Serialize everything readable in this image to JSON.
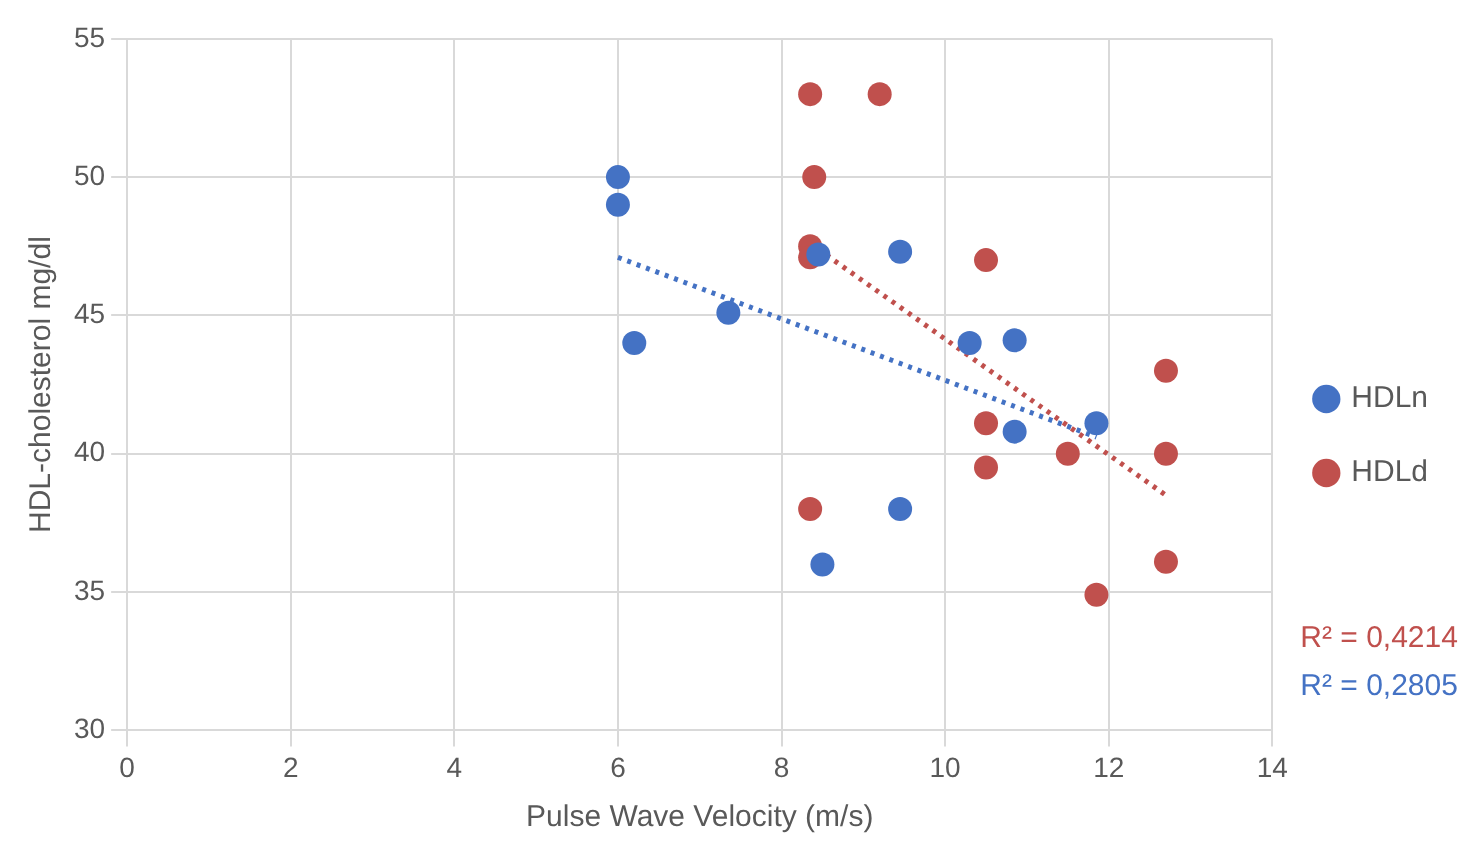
{
  "chart_data": {
    "type": "scatter",
    "xlabel": "Pulse Wave Velocity (m/s)",
    "ylabel": "HDL-cholesterol mg/dl",
    "xlim": [
      0,
      14
    ],
    "xticks": [
      0,
      2,
      4,
      6,
      8,
      10,
      12,
      14
    ],
    "ylim": [
      30,
      55
    ],
    "yticks": [
      30,
      35,
      40,
      45,
      50,
      55
    ],
    "grid": true,
    "legend": "right",
    "marker": "circle",
    "series": [
      {
        "name": "HDLn",
        "color": "#4472c4",
        "x": [
          6,
          6,
          6.2,
          7.35,
          8.45,
          9.45,
          9.45,
          8.5,
          10.3,
          10.85,
          10.85,
          11.85
        ],
        "values": [
          50,
          49,
          44,
          45.1,
          47.2,
          47.3,
          38,
          36,
          44,
          44.1,
          40.8,
          41.1
        ]
      },
      {
        "name": "HDLd",
        "color": "#c0504d",
        "x": [
          8.35,
          9.2,
          8.4,
          8.35,
          8.35,
          10.5,
          12.7,
          10.5,
          10.5,
          11.5,
          12.7,
          12.7,
          11.85,
          8.35
        ],
        "values": [
          53,
          53,
          50,
          47.5,
          47.1,
          47,
          43,
          41.1,
          39.5,
          40,
          40,
          36.1,
          34.9,
          38
        ]
      },
      {
        "type": "line",
        "color": "#c0504d",
        "line_style": "dotted",
        "marker": "none",
        "x": [
          8.35,
          12.7
        ],
        "values": [
          47.6,
          38.5
        ]
      },
      {
        "type": "line",
        "color": "#4472c4",
        "line_style": "dotted",
        "marker": "none",
        "x": [
          6,
          11.85
        ],
        "values": [
          47.1,
          40.6
        ]
      }
    ],
    "annotations": [
      "R² = 0,4214",
      "R² = 0,2805"
    ]
  }
}
